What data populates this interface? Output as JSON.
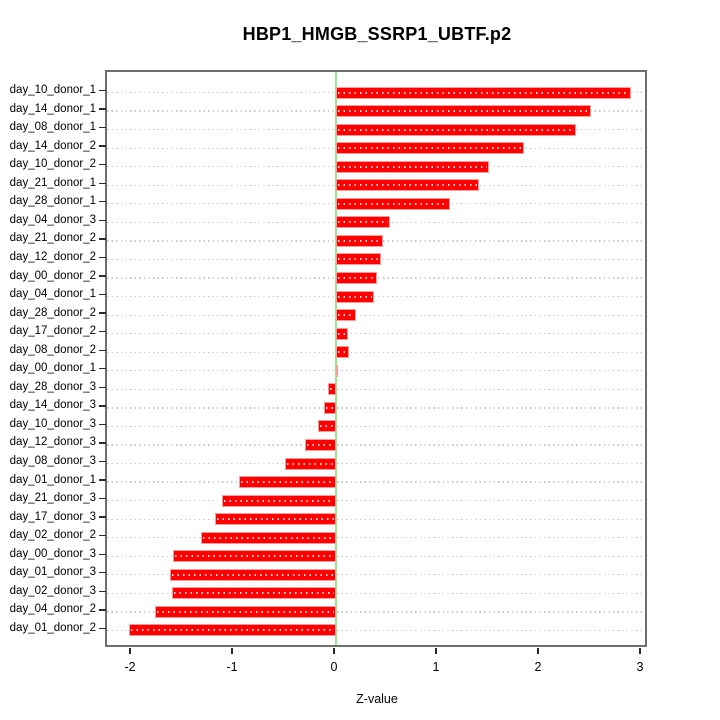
{
  "chart_data": {
    "type": "bar",
    "orientation": "horizontal",
    "title": "HBP1_HMGB_SSRP1_UBTF.p2",
    "xlabel": "Z-value",
    "ylabel": "",
    "categories": [
      "day_10_donor_1",
      "day_14_donor_1",
      "day_08_donor_1",
      "day_14_donor_2",
      "day_10_donor_2",
      "day_21_donor_1",
      "day_28_donor_1",
      "day_04_donor_3",
      "day_21_donor_2",
      "day_12_donor_2",
      "day_00_donor_2",
      "day_04_donor_1",
      "day_28_donor_2",
      "day_17_donor_2",
      "day_08_donor_2",
      "day_00_donor_1",
      "day_28_donor_3",
      "day_14_donor_3",
      "day_10_donor_3",
      "day_12_donor_3",
      "day_08_donor_3",
      "day_01_donor_1",
      "day_21_donor_3",
      "day_17_donor_3",
      "day_02_donor_2",
      "day_00_donor_3",
      "day_01_donor_3",
      "day_02_donor_3",
      "day_04_donor_2",
      "day_01_donor_2"
    ],
    "values": [
      2.89,
      2.5,
      2.35,
      1.84,
      1.5,
      1.4,
      1.12,
      0.53,
      0.46,
      0.44,
      0.4,
      0.37,
      0.2,
      0.12,
      0.13,
      0.02,
      -0.08,
      -0.12,
      -0.18,
      -0.3,
      -0.5,
      -0.95,
      -1.12,
      -1.19,
      -1.32,
      -1.6,
      -1.63,
      -1.61,
      -1.77,
      -2.03
    ],
    "xlim": [
      -2.24,
      3.08
    ],
    "x_ticks": [
      -2,
      -1,
      0,
      1,
      2,
      3
    ],
    "grid": "dotted horizontal per category",
    "legend": "none",
    "colors": {
      "bar_fill": "#ff0000",
      "bar_border": "#ff9c9c",
      "zero_line": "#90ee90",
      "grid": "#c6c6c6",
      "box": "#6e6e6e",
      "text": "#000000"
    }
  }
}
